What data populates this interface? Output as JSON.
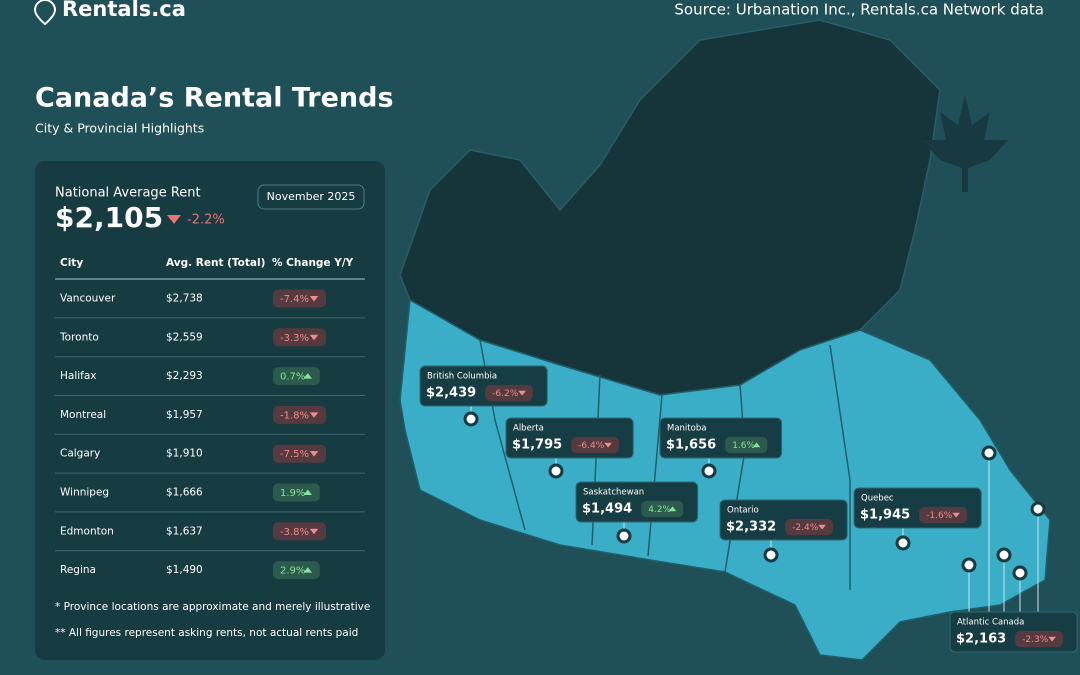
{
  "header": {
    "brand": "Rentals.ca",
    "source": "Source: Urbanation Inc., Rentals.ca Network data"
  },
  "title": "Canada’s Rental Trends",
  "subtitle": "City & Provincial Highlights",
  "national": {
    "label": "National Average Rent",
    "value": "$2,105",
    "change": "-2.2%",
    "date": "November 2025"
  },
  "table": {
    "columns": [
      "City",
      "Avg. Rent (Total)",
      "% Change Y/Y"
    ],
    "rows": [
      [
        "Vancouver",
        "$2,738",
        "-7.4%"
      ],
      [
        "Toronto",
        "$2,559",
        "-3.3%"
      ],
      [
        "Halifax",
        "$2,293",
        "0.7%"
      ],
      [
        "Montreal",
        "$1,957",
        "-1.8%"
      ],
      [
        "Calgary",
        "$1,910",
        "-7.5%"
      ],
      [
        "Winnipeg",
        "$1,666",
        "1.9%"
      ],
      [
        "Edmonton",
        "$1,637",
        "-3.8%"
      ],
      [
        "Regina",
        "$1,490",
        "2.9%"
      ]
    ]
  },
  "notes": [
    "* Province locations are approximate and merely illustrative",
    "** All figures represent asking rents, not actual rents paid"
  ],
  "provinces": [
    {
      "name": "British Columbia",
      "rent": "$2,439",
      "change": "-6.2%"
    },
    {
      "name": "Alberta",
      "rent": "$1,795",
      "change": "-6.4%"
    },
    {
      "name": "Manitoba",
      "rent": "$1,656",
      "change": "1.6%"
    },
    {
      "name": "Saskatchewan",
      "rent": "$1,494",
      "change": "4.2%"
    },
    {
      "name": "Ontario",
      "rent": "$2,332",
      "change": "-2.4%"
    },
    {
      "name": "Quebec",
      "rent": "$1,945",
      "change": "-1.6%"
    },
    {
      "name": "Atlantic Canada",
      "rent": "$2,163",
      "change": "-2.3%"
    }
  ]
}
